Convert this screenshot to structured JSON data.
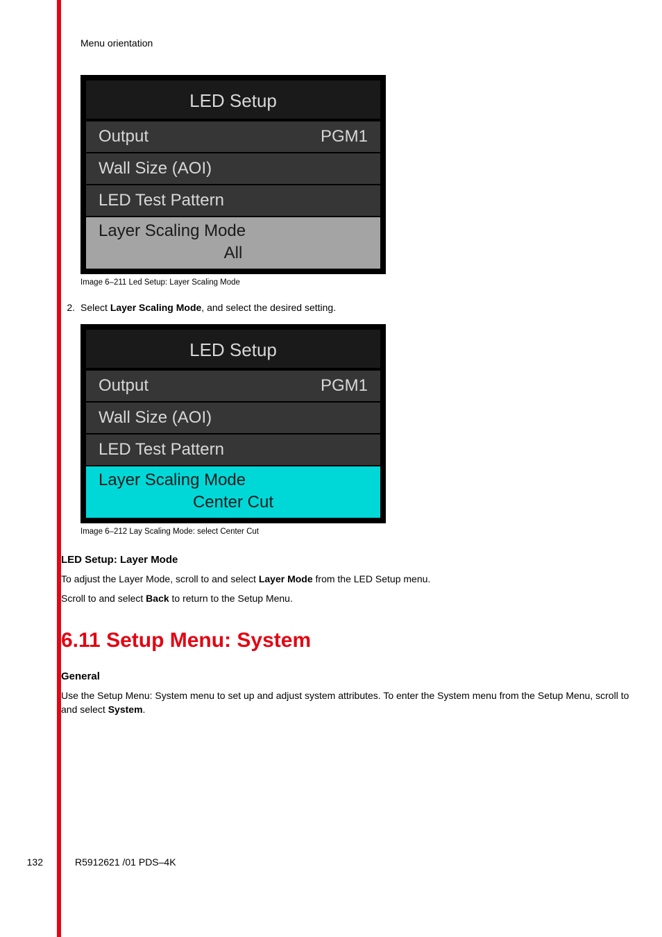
{
  "header": "Menu orientation",
  "menu1": {
    "title": "LED Setup",
    "rows": [
      {
        "label": "Output",
        "value": "PGM1"
      },
      {
        "label": "Wall Size (AOI)",
        "value": ""
      },
      {
        "label": "LED Test Pattern",
        "value": ""
      }
    ],
    "section": {
      "label": "Layer Scaling Mode",
      "value": "All",
      "bg": "#a4a4a4"
    },
    "caption": "Image 6–211  Led Setup: Layer Scaling Mode"
  },
  "step": {
    "num": "2.",
    "pre": "Select ",
    "bold": "Layer Scaling Mode",
    "post": ", and select the desired setting."
  },
  "menu2": {
    "title": "LED Setup",
    "rows": [
      {
        "label": "Output",
        "value": "PGM1"
      },
      {
        "label": "Wall Size (AOI)",
        "value": ""
      },
      {
        "label": "LED Test Pattern",
        "value": ""
      }
    ],
    "section": {
      "label": "Layer Scaling Mode",
      "value": "Center Cut",
      "bg": "#00d8d8"
    },
    "caption": "Image 6–212  Lay Scaling Mode: select Center Cut"
  },
  "sub1": {
    "heading": "LED Setup: Layer Mode",
    "p1_pre": "To adjust the Layer Mode, scroll to and select ",
    "p1_bold": "Layer Mode",
    "p1_post": " from the LED Setup menu.",
    "p2_pre": "Scroll to and select ",
    "p2_bold": "Back",
    "p2_post": " to return to the Setup Menu."
  },
  "h2": "6.11 Setup Menu: System",
  "sub2": {
    "heading": "General",
    "p1_a": "Use the Setup Menu: System menu to set up and adjust system attributes. To enter the System menu from the Setup Menu, scroll to and select ",
    "p1_bold": "System",
    "p1_b": "."
  },
  "footer": {
    "page": "132",
    "doc": "R5912621 /01 PDS–4K"
  },
  "colors": {
    "accent_red": "#e30613",
    "menu_bg_dark": "#1a1a1a",
    "menu_row_bg": "#363636",
    "menu_text": "#d8d8d8",
    "section_gray": "#a4a4a4",
    "section_cyan": "#00d8d8"
  }
}
